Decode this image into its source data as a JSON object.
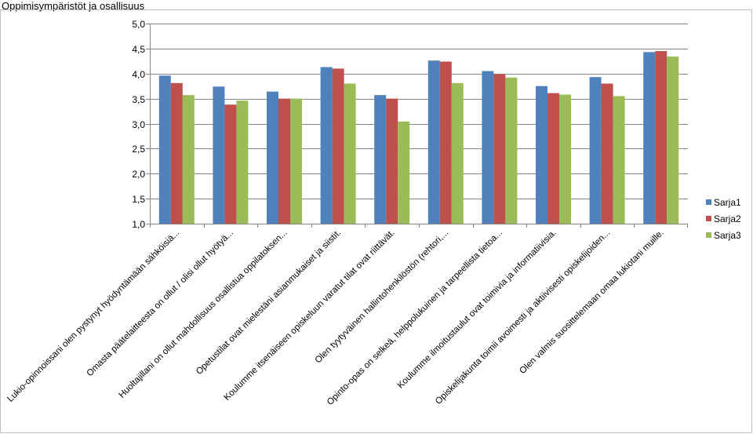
{
  "chart_data": {
    "type": "bar",
    "title": "Oppimisympäristöt ja osallisuus",
    "xlabel": "",
    "ylabel": "",
    "ylim": [
      1.0,
      5.0
    ],
    "yticks": [
      "1,0",
      "1,5",
      "2,0",
      "2,5",
      "3,0",
      "3,5",
      "4,0",
      "4,5",
      "5,0"
    ],
    "grid": true,
    "legend_position": "right",
    "categories": [
      "Lukio-opinnoissani olen pystynyt hyödyntämään sähköisiä...",
      "Omasta päätelaitteesta on ollut / olisi ollut hyötyä...",
      "Huoltajillani on ollut mahdollisuus osallistua oppilatoksen...",
      "Opetustilat ovat mielestäni asianmukaiset ja siistit.",
      "Koulumme itsenäiseen opiskeluun varatut tilat ovat riittävät.",
      "Olen tyytyväinen hallintohenkilöstön (rehtori,...",
      "Opinto-opas on selkeä, helppolukuinen ja tarpeellista tietoa...",
      "Koulumme ilmoitustaulut ovat toimivia ja informatiivisia.",
      "Opiskelijakunta toimii avoimesti ja aktiivisesti opiskelijoiden...",
      "Olen valmis suosittelemaan omaa lukiotani muille."
    ],
    "series": [
      {
        "name": "Sarja1",
        "color": "#4f81bd",
        "values": [
          3.96,
          3.74,
          3.64,
          4.13,
          3.57,
          4.26,
          4.05,
          3.75,
          3.93,
          4.43
        ]
      },
      {
        "name": "Sarja2",
        "color": "#c0504d",
        "values": [
          3.81,
          3.38,
          3.5,
          4.1,
          3.5,
          4.24,
          3.99,
          3.61,
          3.8,
          4.45
        ]
      },
      {
        "name": "Sarja3",
        "color": "#9bbb59",
        "values": [
          3.57,
          3.46,
          3.5,
          3.8,
          3.04,
          3.81,
          3.92,
          3.58,
          3.55,
          4.34
        ]
      }
    ]
  }
}
